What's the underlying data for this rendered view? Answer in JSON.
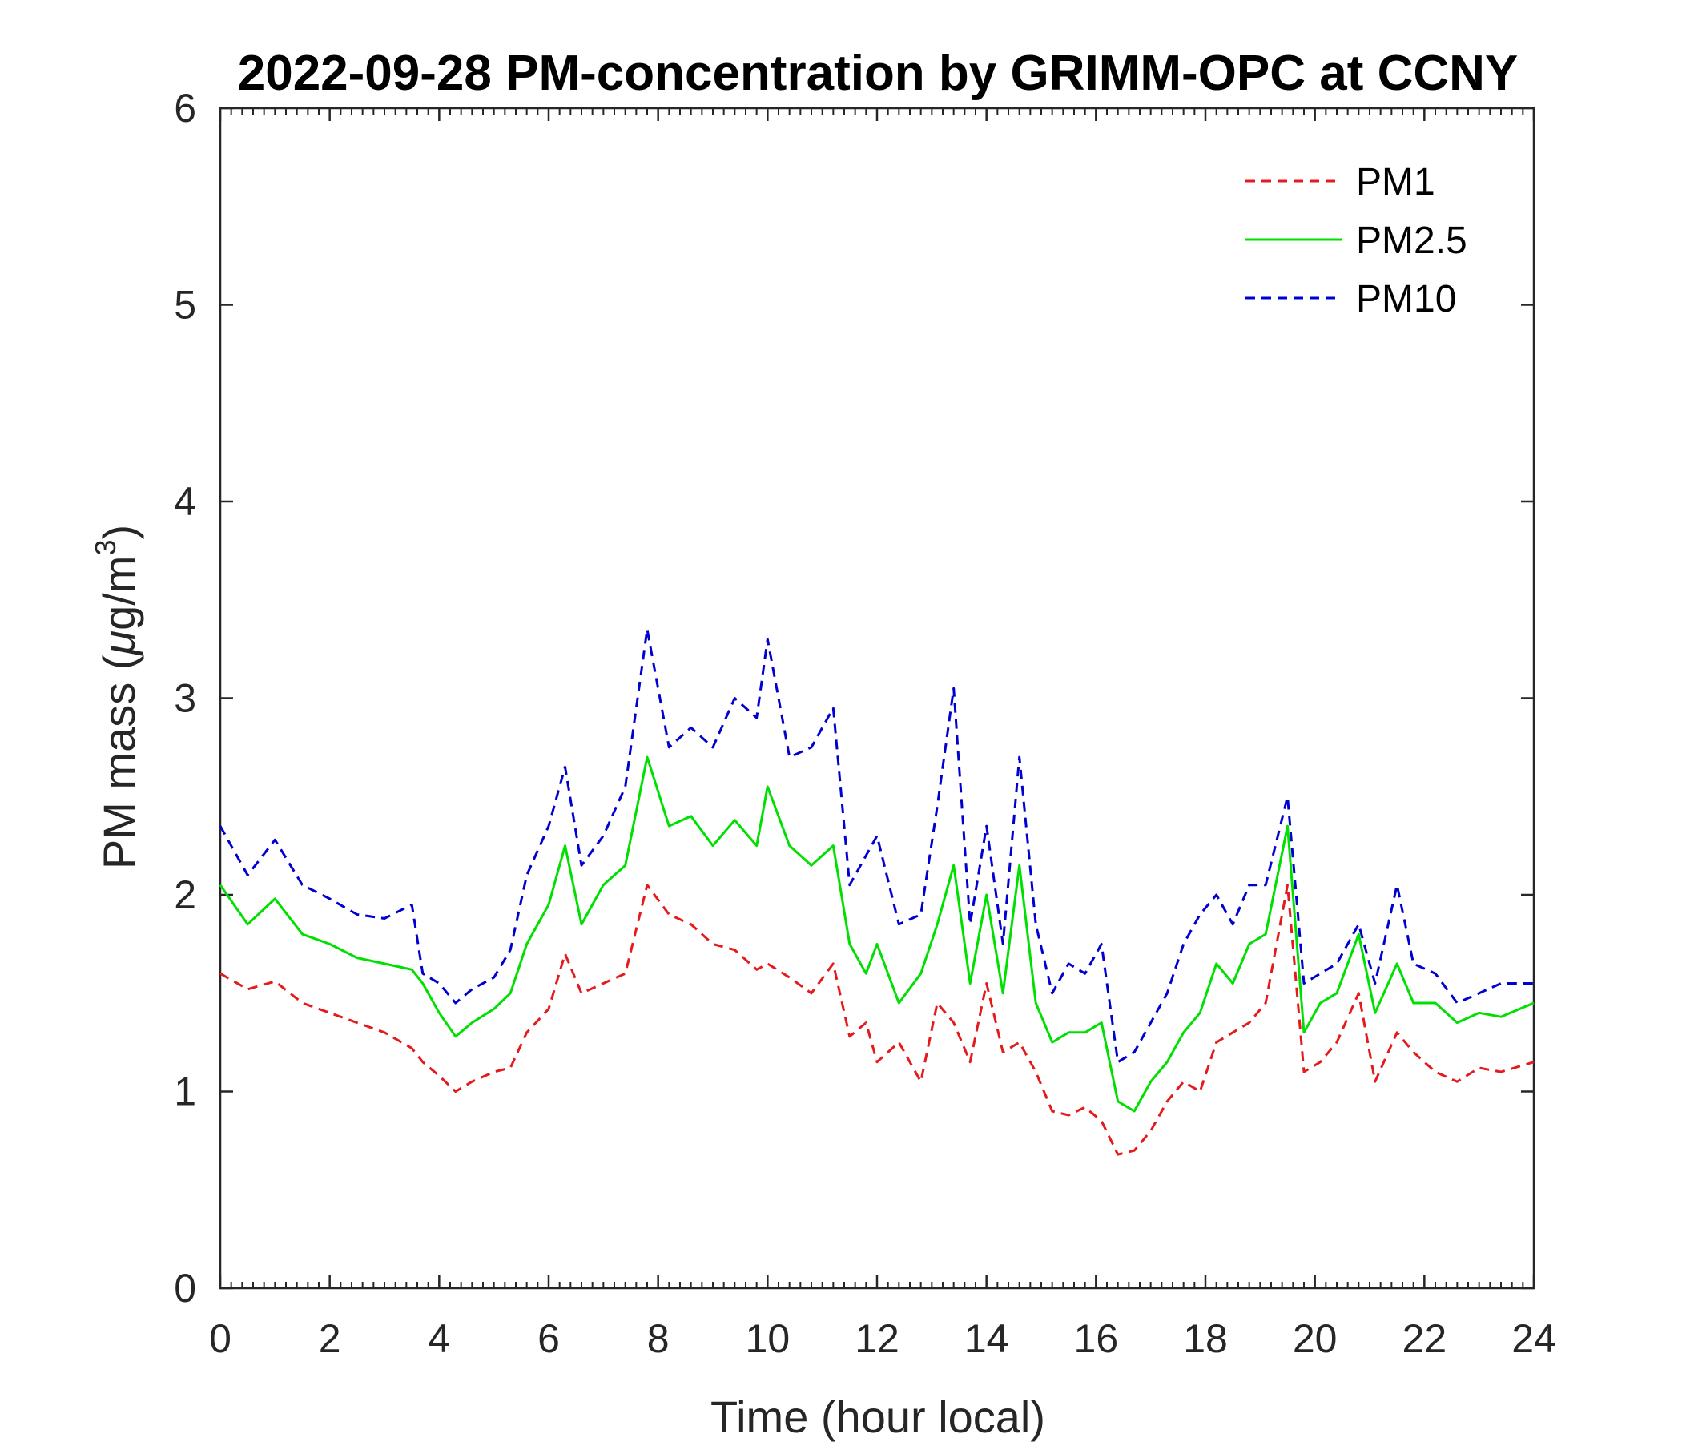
{
  "chart_data": {
    "type": "line",
    "title": "2022-09-28 PM-concentration by GRIMM-OPC at CCNY",
    "xlabel": "Time (hour local)",
    "ylabel_main": "PM mass (",
    "ylabel_mu": "μ",
    "ylabel_unit": "g/m",
    "ylabel_sup": "3",
    "ylabel_close": ")",
    "xlim": [
      0,
      24
    ],
    "ylim": [
      0,
      6
    ],
    "xticks": [
      0,
      2,
      4,
      6,
      8,
      10,
      12,
      14,
      16,
      18,
      20,
      22,
      24
    ],
    "xtick_labels": [
      "0",
      "2",
      "4",
      "6",
      "8",
      "10",
      "12",
      "14",
      "16",
      "18",
      "20",
      "22",
      "24"
    ],
    "yticks": [
      0,
      1,
      2,
      3,
      4,
      5,
      6
    ],
    "ytick_labels": [
      "0",
      "1",
      "2",
      "3",
      "4",
      "5",
      "6"
    ],
    "legend_position": "top-right",
    "x": [
      0,
      0.5,
      1,
      1.5,
      2,
      2.5,
      3,
      3.5,
      3.7,
      4,
      4.3,
      4.6,
      5,
      5.3,
      5.6,
      6,
      6.3,
      6.6,
      7,
      7.4,
      7.8,
      8.2,
      8.6,
      9,
      9.4,
      9.8,
      10,
      10.4,
      10.8,
      11.2,
      11.5,
      11.8,
      12,
      12.4,
      12.8,
      13.1,
      13.4,
      13.7,
      14,
      14.3,
      14.6,
      14.9,
      15.2,
      15.5,
      15.8,
      16.1,
      16.4,
      16.7,
      17,
      17.3,
      17.6,
      17.9,
      18.2,
      18.5,
      18.8,
      19.1,
      19.5,
      19.8,
      20.1,
      20.4,
      20.8,
      21.1,
      21.5,
      21.8,
      22.2,
      22.6,
      23,
      23.4,
      24
    ],
    "series": [
      {
        "name": "PM1",
        "color": "#e41a1c",
        "dash": "dashed",
        "values": [
          1.6,
          1.52,
          1.56,
          1.45,
          1.4,
          1.35,
          1.3,
          1.22,
          1.15,
          1.08,
          1.0,
          1.05,
          1.1,
          1.12,
          1.3,
          1.42,
          1.7,
          1.5,
          1.55,
          1.6,
          2.05,
          1.9,
          1.85,
          1.75,
          1.72,
          1.62,
          1.65,
          1.58,
          1.5,
          1.65,
          1.28,
          1.35,
          1.15,
          1.25,
          1.05,
          1.45,
          1.35,
          1.15,
          1.55,
          1.2,
          1.25,
          1.1,
          0.9,
          0.88,
          0.92,
          0.85,
          0.68,
          0.7,
          0.8,
          0.95,
          1.05,
          1.0,
          1.25,
          1.3,
          1.35,
          1.45,
          2.05,
          1.1,
          1.15,
          1.25,
          1.5,
          1.05,
          1.3,
          1.2,
          1.1,
          1.05,
          1.12,
          1.1,
          1.15
        ]
      },
      {
        "name": "PM2.5",
        "color": "#00e000",
        "dash": "solid",
        "values": [
          2.05,
          1.85,
          1.98,
          1.8,
          1.75,
          1.68,
          1.65,
          1.62,
          1.55,
          1.4,
          1.28,
          1.35,
          1.42,
          1.5,
          1.75,
          1.95,
          2.25,
          1.85,
          2.05,
          2.15,
          2.7,
          2.35,
          2.4,
          2.25,
          2.38,
          2.25,
          2.55,
          2.25,
          2.15,
          2.25,
          1.75,
          1.6,
          1.75,
          1.45,
          1.6,
          1.85,
          2.15,
          1.55,
          2.0,
          1.5,
          2.15,
          1.45,
          1.25,
          1.3,
          1.3,
          1.35,
          0.95,
          0.9,
          1.05,
          1.15,
          1.3,
          1.4,
          1.65,
          1.55,
          1.75,
          1.8,
          2.35,
          1.3,
          1.45,
          1.5,
          1.8,
          1.4,
          1.65,
          1.45,
          1.45,
          1.35,
          1.4,
          1.38,
          1.45
        ]
      },
      {
        "name": "PM10",
        "color": "#0000d0",
        "dash": "dashed",
        "values": [
          2.35,
          2.1,
          2.28,
          2.05,
          1.98,
          1.9,
          1.88,
          1.95,
          1.6,
          1.55,
          1.45,
          1.52,
          1.58,
          1.72,
          2.1,
          2.35,
          2.65,
          2.15,
          2.3,
          2.55,
          3.35,
          2.75,
          2.85,
          2.75,
          3.0,
          2.9,
          3.3,
          2.7,
          2.75,
          2.95,
          2.05,
          2.2,
          2.3,
          1.85,
          1.9,
          2.45,
          3.05,
          1.85,
          2.35,
          1.75,
          2.7,
          1.85,
          1.5,
          1.65,
          1.6,
          1.75,
          1.15,
          1.2,
          1.35,
          1.5,
          1.75,
          1.9,
          2.0,
          1.85,
          2.05,
          2.05,
          2.5,
          1.55,
          1.6,
          1.65,
          1.85,
          1.55,
          2.05,
          1.65,
          1.6,
          1.45,
          1.5,
          1.55,
          1.55
        ]
      }
    ]
  }
}
